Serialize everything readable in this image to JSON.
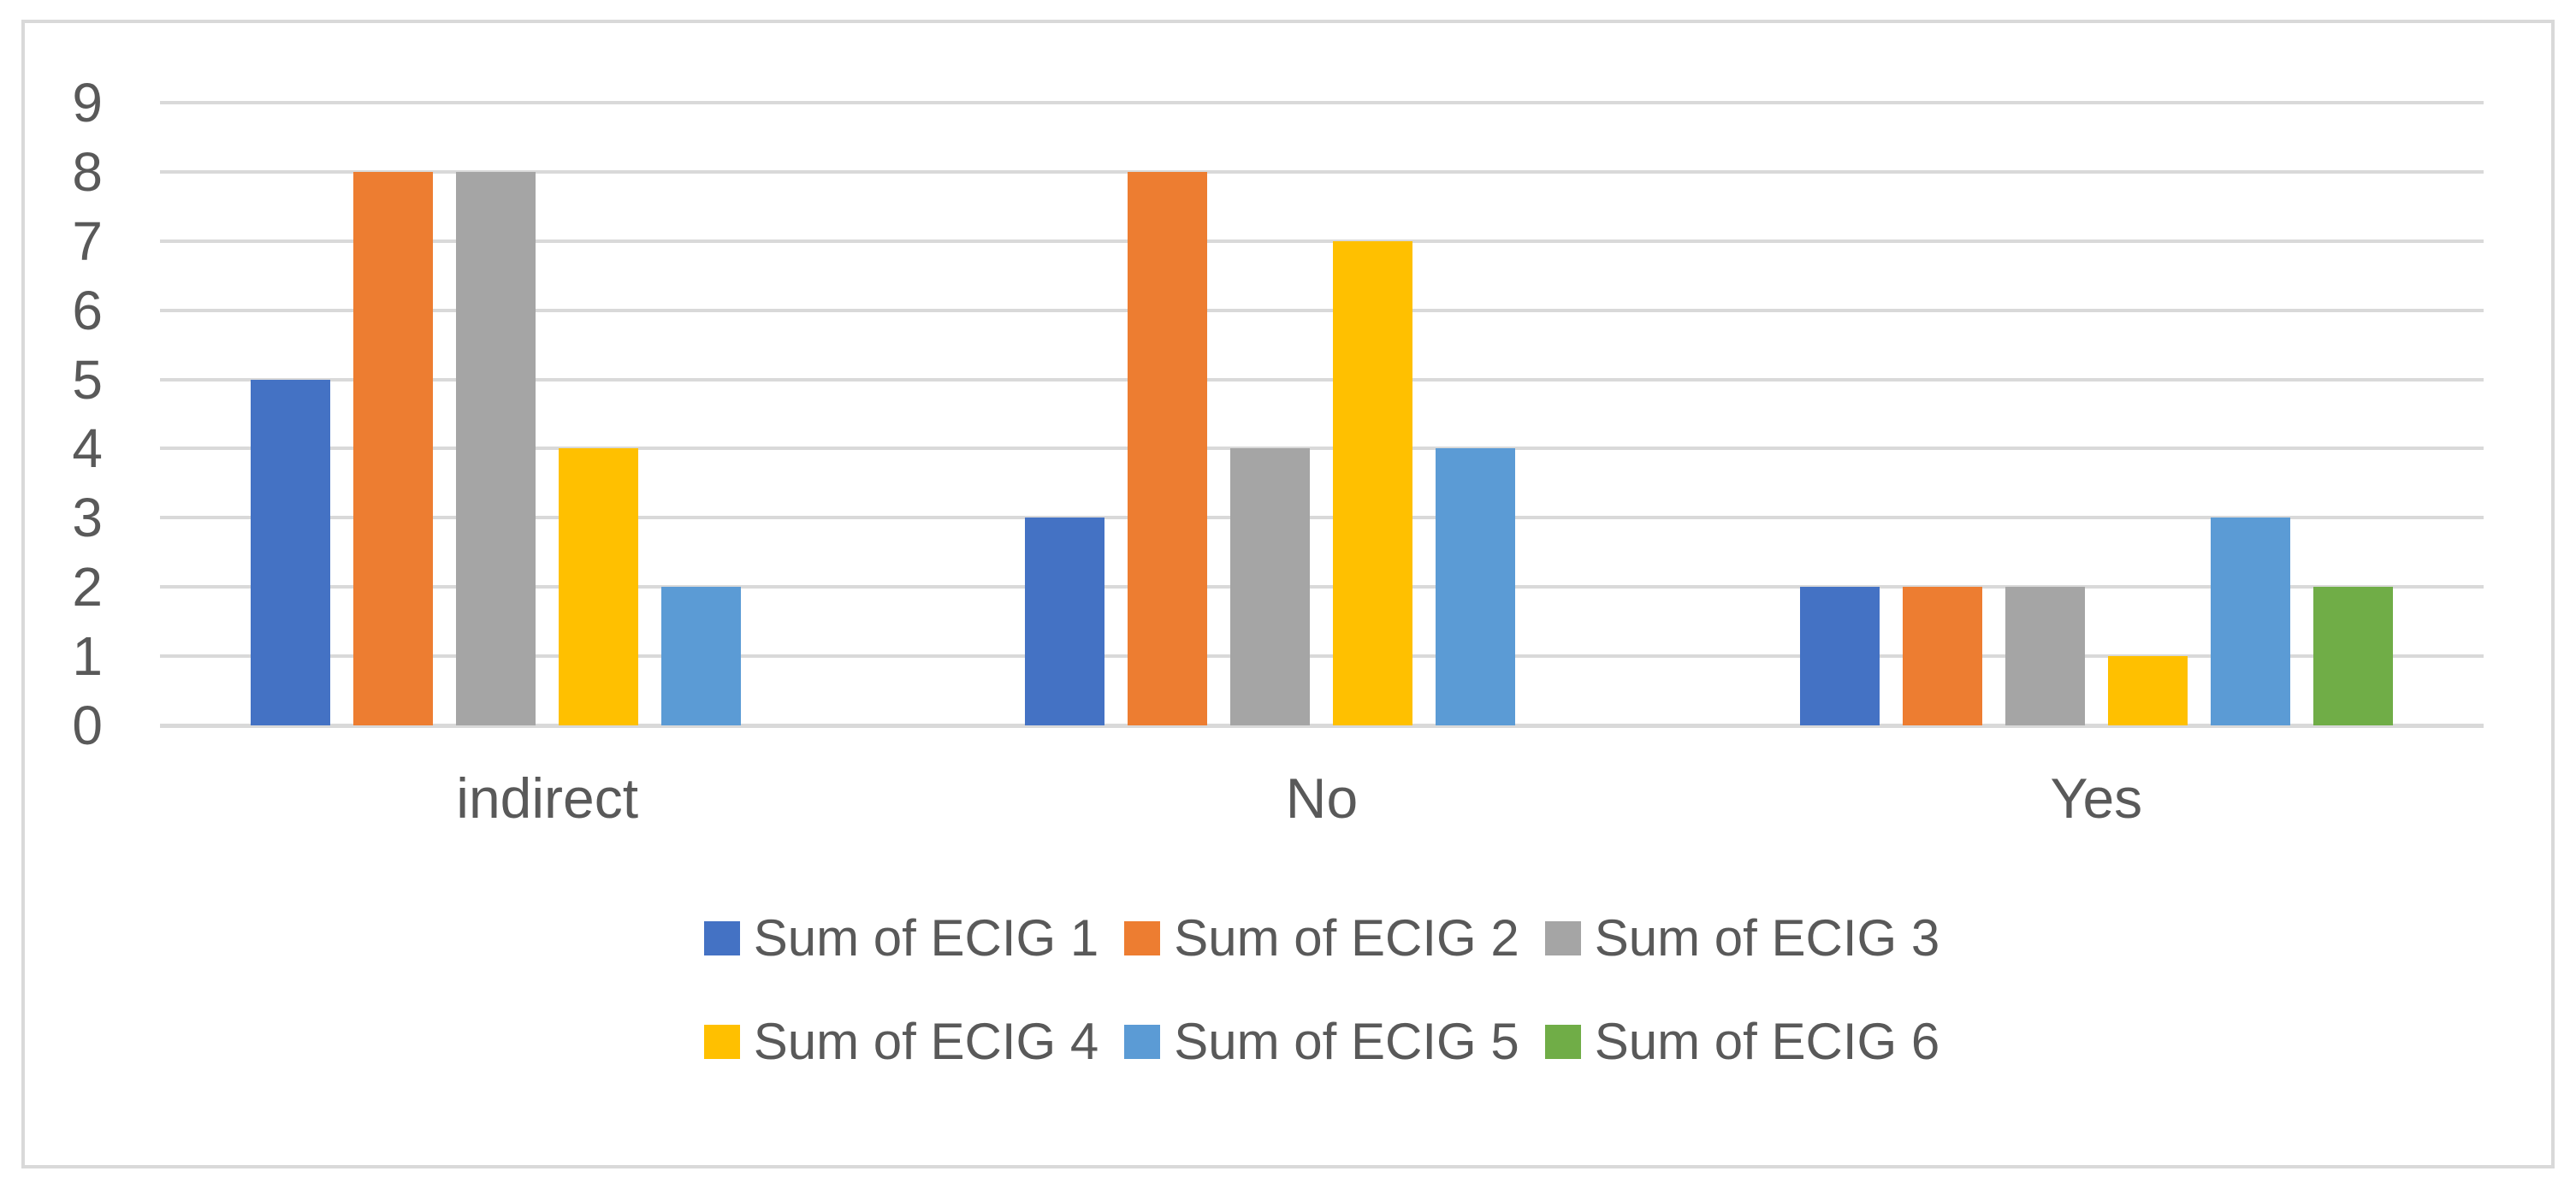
{
  "chart_data": {
    "type": "bar",
    "title": "",
    "categories": [
      "indirect",
      "No",
      "Yes"
    ],
    "series": [
      {
        "name": "Sum of ECIG 1",
        "color": "#4472C4",
        "values": [
          5,
          3,
          2
        ]
      },
      {
        "name": "Sum of ECIG 2",
        "color": "#ED7D31",
        "values": [
          8,
          8,
          2
        ]
      },
      {
        "name": "Sum of ECIG 3",
        "color": "#A5A5A5",
        "values": [
          8,
          4,
          2
        ]
      },
      {
        "name": "Sum of ECIG 4",
        "color": "#FFC000",
        "values": [
          4,
          7,
          1
        ]
      },
      {
        "name": "Sum of ECIG 5",
        "color": "#5B9BD5",
        "values": [
          2,
          4,
          3
        ]
      },
      {
        "name": "Sum of ECIG 6",
        "color": "#70AD47",
        "values": [
          0,
          0,
          2
        ]
      }
    ],
    "y_axis": {
      "min": 0,
      "max": 9,
      "step": 1,
      "ticks": [
        "0",
        "1",
        "2",
        "3",
        "4",
        "5",
        "6",
        "7",
        "8",
        "9"
      ]
    },
    "grid": true,
    "legend_position": "bottom",
    "legend_items_per_row": 3
  },
  "colors": {
    "axis_text": "#595959",
    "gridline": "#D9D9D9",
    "frame_border": "#D9D9D9",
    "background": "#FFFFFF"
  }
}
